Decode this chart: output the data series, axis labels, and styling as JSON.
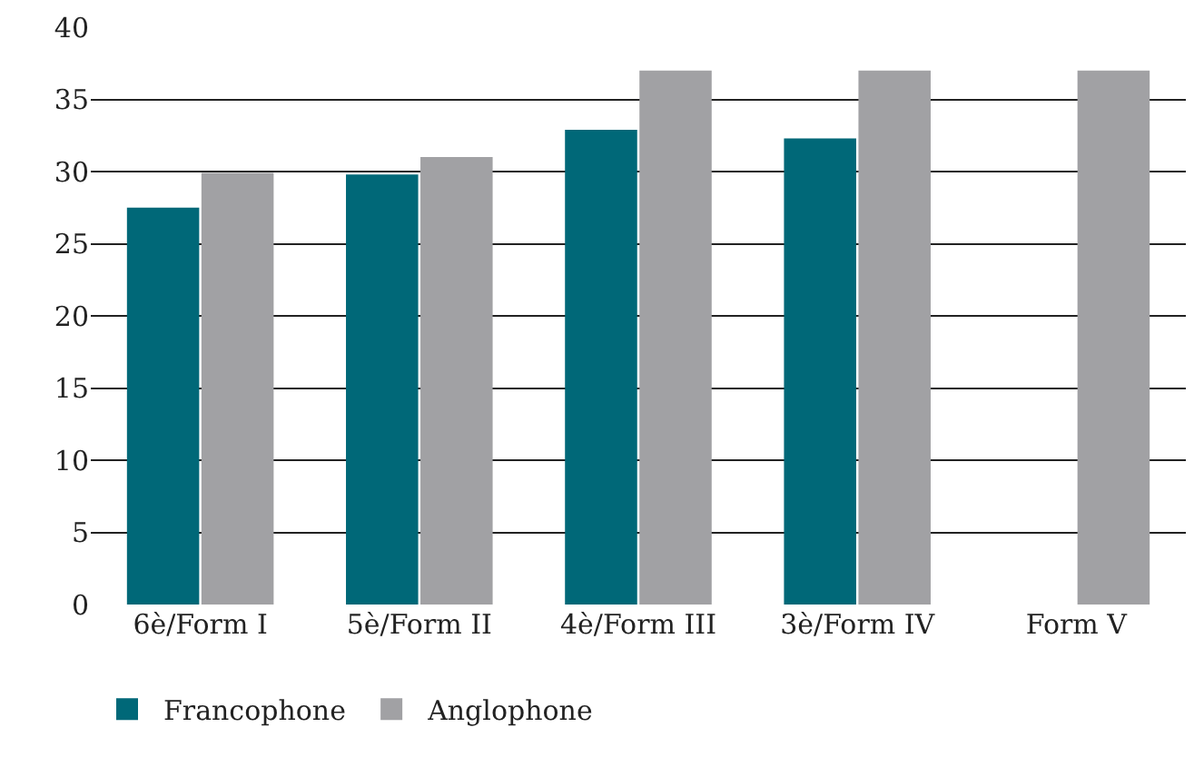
{
  "chart_data": {
    "type": "bar",
    "categories": [
      "6è/Form I",
      "5è/Form II",
      "4è/Form III",
      "3è/Form IV",
      "Form V"
    ],
    "series": [
      {
        "name": "Francophone",
        "color": "#006878",
        "values": [
          27.5,
          29.8,
          32.9,
          32.3,
          null
        ]
      },
      {
        "name": "Anglophone",
        "color": "#a1a1a4",
        "values": [
          29.9,
          31,
          37,
          37,
          37
        ]
      }
    ],
    "ylim": [
      0,
      40
    ],
    "yticks": [
      0,
      5,
      10,
      15,
      20,
      25,
      30,
      35,
      40
    ],
    "grid": "y",
    "legend": "bottom left"
  }
}
